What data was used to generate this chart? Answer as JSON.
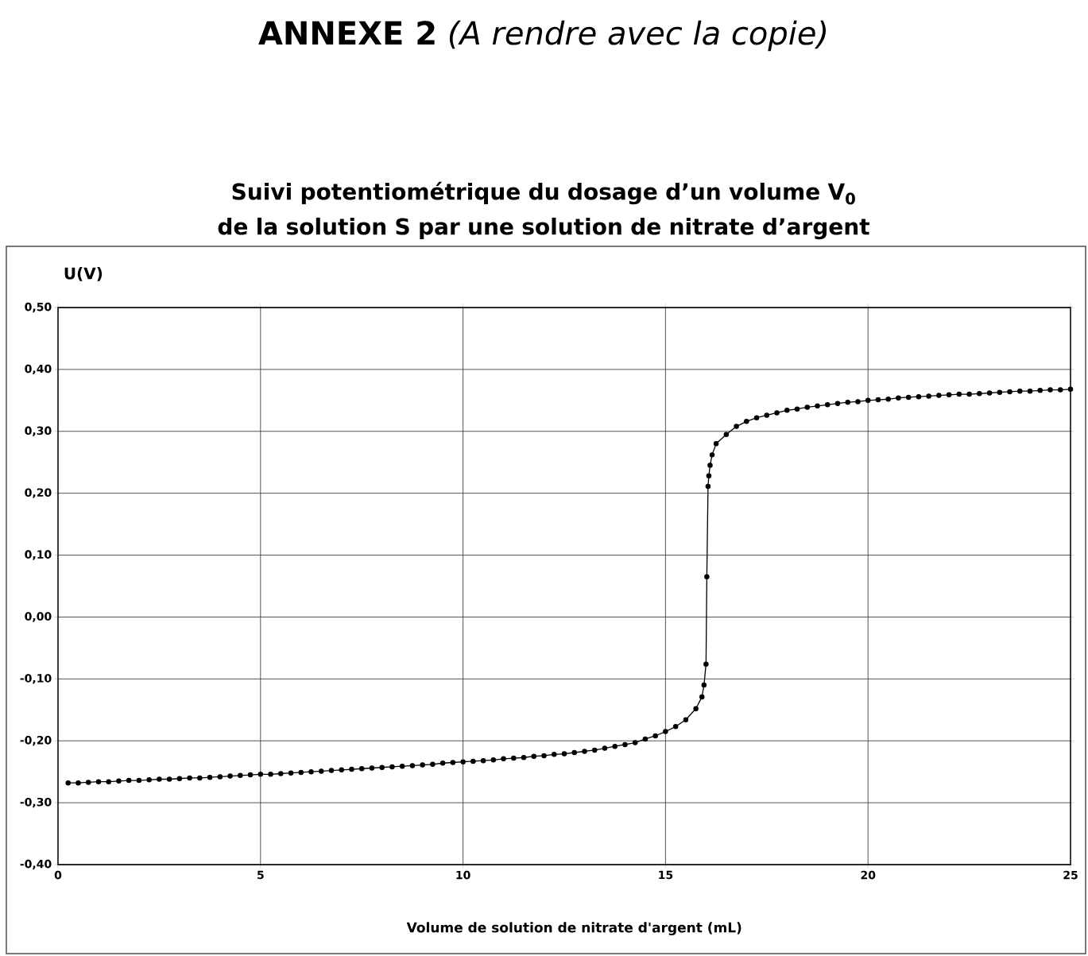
{
  "chart_data": {
    "type": "line",
    "title": "Suivi potentiométrique du dosage d’un volume V$_{0}$ de la solution S par une solution de nitrate d’argent",
    "annotations": [
      "**ANNEXE 2** *(A rendre avec la copie)*"
    ],
    "xlabel": "Volume de solution de nitrate d'argent (mL)",
    "ylabel": "U(V)",
    "x": [
      0.25,
      0.5,
      0.75,
      1.0,
      1.25,
      1.5,
      1.75,
      2.0,
      2.25,
      2.5,
      2.75,
      3.0,
      3.25,
      3.5,
      3.75,
      4.0,
      4.25,
      4.5,
      4.75,
      5.0,
      5.25,
      5.5,
      5.75,
      6.0,
      6.25,
      6.5,
      6.75,
      7.0,
      7.25,
      7.5,
      7.75,
      8.0,
      8.25,
      8.5,
      8.75,
      9.0,
      9.25,
      9.5,
      9.75,
      10.0,
      10.25,
      10.5,
      10.75,
      11.0,
      11.25,
      11.5,
      11.75,
      12.0,
      12.25,
      12.5,
      12.75,
      13.0,
      13.25,
      13.5,
      13.75,
      14.0,
      14.25,
      14.5,
      14.75,
      15.0,
      15.25,
      15.5,
      15.75,
      15.9,
      15.95,
      16.0,
      16.02,
      16.05,
      16.07,
      16.1,
      16.15,
      16.25,
      16.5,
      16.75,
      17.0,
      17.25,
      17.5,
      17.75,
      18.0,
      18.25,
      18.5,
      18.75,
      19.0,
      19.25,
      19.5,
      19.75,
      20.0,
      20.25,
      20.5,
      20.75,
      21.0,
      21.25,
      21.5,
      21.75,
      22.0,
      22.25,
      22.5,
      22.75,
      23.0,
      23.25,
      23.5,
      23.75,
      24.0,
      24.25,
      24.5,
      24.75,
      25.0
    ],
    "series": [
      {
        "color": "#000000",
        "values": [
          -0.268,
          -0.268,
          -0.267,
          -0.266,
          -0.266,
          -0.265,
          -0.264,
          -0.264,
          -0.263,
          -0.262,
          -0.262,
          -0.261,
          -0.26,
          -0.26,
          -0.259,
          -0.258,
          -0.257,
          -0.256,
          -0.255,
          -0.254,
          -0.254,
          -0.253,
          -0.252,
          -0.251,
          -0.25,
          -0.249,
          -0.248,
          -0.247,
          -0.246,
          -0.245,
          -0.244,
          -0.243,
          -0.242,
          -0.241,
          -0.24,
          -0.239,
          -0.238,
          -0.236,
          -0.235,
          -0.234,
          -0.233,
          -0.232,
          -0.231,
          -0.229,
          -0.228,
          -0.227,
          -0.225,
          -0.224,
          -0.222,
          -0.221,
          -0.219,
          -0.217,
          -0.215,
          -0.212,
          -0.209,
          -0.206,
          -0.203,
          -0.197,
          -0.192,
          -0.185,
          -0.177,
          -0.166,
          -0.148,
          -0.129,
          -0.11,
          -0.076,
          0.065,
          0.211,
          0.228,
          0.245,
          0.262,
          0.28,
          0.295,
          0.308,
          0.316,
          0.322,
          0.326,
          0.33,
          0.334,
          0.336,
          0.339,
          0.341,
          0.343,
          0.345,
          0.347,
          0.348,
          0.35,
          0.351,
          0.352,
          0.354,
          0.355,
          0.356,
          0.357,
          0.358,
          0.359,
          0.36,
          0.36,
          0.361,
          0.362,
          0.363,
          0.364,
          0.365,
          0.365,
          0.366,
          0.367,
          0.367,
          0.368
        ]
      }
    ],
    "xlim": [
      0,
      25
    ],
    "xticks": [
      0,
      5,
      10,
      15,
      20,
      25
    ],
    "ylim": [
      -0.4,
      0.5
    ],
    "yticks": [
      {
        "value": -0.4,
        "label": "-0,40"
      },
      {
        "value": -0.3,
        "label": "-0,30"
      },
      {
        "value": -0.2,
        "label": "-0,20"
      },
      {
        "value": -0.1,
        "label": "-0,10"
      },
      {
        "value": 0.0,
        "label": "0,00"
      },
      {
        "value": 0.1,
        "label": "0,10"
      },
      {
        "value": 0.2,
        "label": "0,20"
      },
      {
        "value": 0.3,
        "label": "0,30"
      },
      {
        "value": 0.4,
        "label": "0,40"
      },
      {
        "value": 0.5,
        "label": "0,50"
      }
    ],
    "grid": true,
    "marker": "circle",
    "line_style": "solid"
  }
}
